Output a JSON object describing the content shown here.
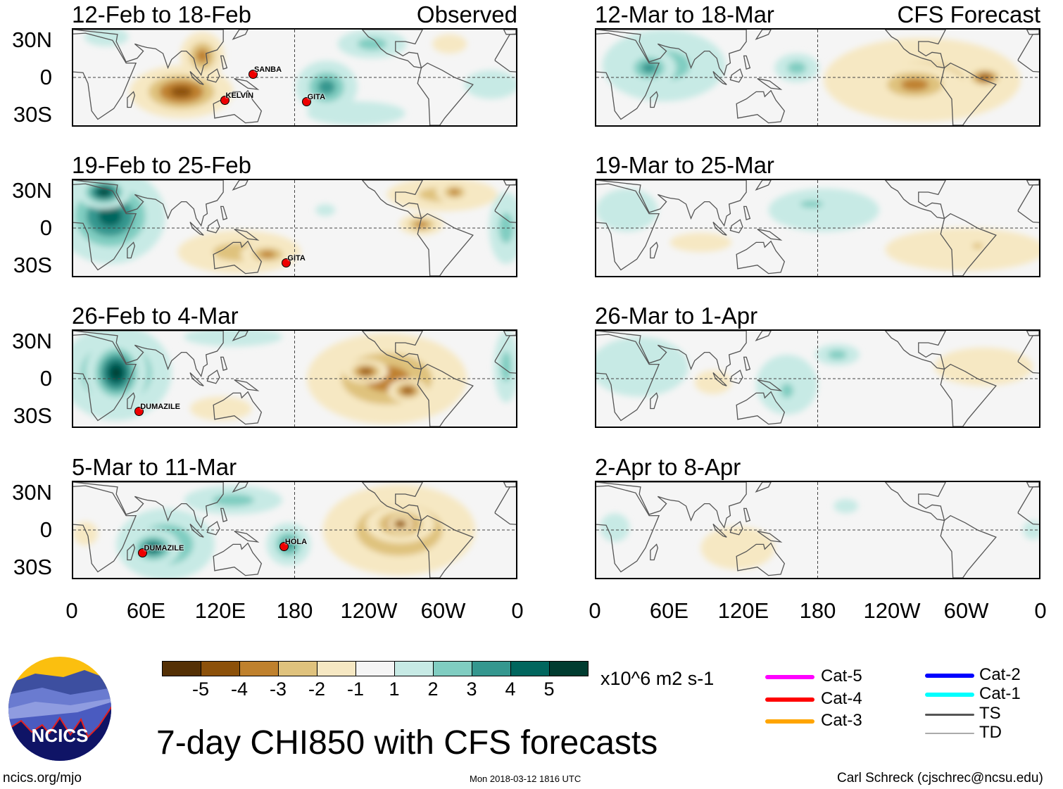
{
  "figure": {
    "title": "7-day CHI850 with CFS forecasts",
    "units": "x10^6 m2 s-1",
    "url": "ncics.org/mjo",
    "timestamp": "Mon 2018-03-12 1816 UTC",
    "credit": "Carl Schreck (cjschrec@ncsu.edu)",
    "logo_text": "NCICS"
  },
  "chart_data": {
    "type": "heatmap",
    "title": "7-day CHI850 with CFS forecasts",
    "colorbar": {
      "colors": [
        "#543005",
        "#8c510a",
        "#bf812d",
        "#dfc27d",
        "#f6e8c3",
        "#f5f5f5",
        "#c7eae5",
        "#80cdc1",
        "#35978f",
        "#01665e",
        "#003c30"
      ],
      "tick_labels": [
        "-5",
        "-4",
        "-3",
        "-2",
        "-1",
        "1",
        "2",
        "3",
        "4",
        "5"
      ],
      "units": "x10^6 m2 s-1"
    },
    "y_ticks": [
      "30N",
      "0",
      "30S"
    ],
    "x_ticks": [
      "0",
      "60E",
      "120E",
      "180",
      "120W",
      "60W",
      "0"
    ],
    "lon_range": [
      0,
      360
    ],
    "lat_range": [
      -40,
      40
    ],
    "panels": [
      {
        "title": "12-Feb to 18-Feb",
        "label": "Observed",
        "features": [
          {
            "lon": 88,
            "lat": -12,
            "rx": 42,
            "ry": 22,
            "level": -4
          },
          {
            "lon": 105,
            "lat": 18,
            "rx": 18,
            "ry": 20,
            "level": -3
          },
          {
            "lon": 206,
            "lat": -8,
            "rx": 25,
            "ry": 22,
            "level": 3
          },
          {
            "lon": 243,
            "lat": 28,
            "rx": 28,
            "ry": 12,
            "level": 2
          },
          {
            "lon": 340,
            "lat": -6,
            "rx": 22,
            "ry": 12,
            "level": 1
          },
          {
            "lon": 306,
            "lat": 28,
            "rx": 14,
            "ry": 8,
            "level": -1
          },
          {
            "lon": 27,
            "lat": 34,
            "rx": 18,
            "ry": 8,
            "level": 1
          },
          {
            "lon": 230,
            "lat": -30,
            "rx": 40,
            "ry": 10,
            "level": 1
          }
        ],
        "storms": [
          {
            "name": "SANBA",
            "lon": 145,
            "lat": 4
          },
          {
            "name": "KELVIN",
            "lon": 122,
            "lat": -17
          },
          {
            "name": "GITA",
            "lon": 188,
            "lat": -18
          }
        ]
      },
      {
        "title": "19-Feb to 25-Feb",
        "label": "",
        "features": [
          {
            "lon": 30,
            "lat": 10,
            "rx": 45,
            "ry": 40,
            "level": 4
          },
          {
            "lon": 25,
            "lat": 30,
            "rx": 22,
            "ry": 14,
            "level": 5
          },
          {
            "lon": 135,
            "lat": -20,
            "rx": 50,
            "ry": 18,
            "level": -2
          },
          {
            "lon": 158,
            "lat": -22,
            "rx": 22,
            "ry": 10,
            "level": -3
          },
          {
            "lon": 300,
            "lat": 28,
            "rx": 45,
            "ry": 14,
            "level": -2
          },
          {
            "lon": 310,
            "lat": 30,
            "rx": 15,
            "ry": 9,
            "level": -3
          },
          {
            "lon": 283,
            "lat": 3,
            "rx": 18,
            "ry": 9,
            "level": -3
          },
          {
            "lon": 352,
            "lat": 0,
            "rx": 14,
            "ry": 30,
            "level": 2
          },
          {
            "lon": 205,
            "lat": 15,
            "rx": 8,
            "ry": 5,
            "level": 1
          }
        ],
        "storms": [
          {
            "name": "GITA",
            "lon": 172,
            "lat": -27
          }
        ]
      },
      {
        "title": "26-Feb to 4-Mar",
        "label": "",
        "features": [
          {
            "lon": 35,
            "lat": 5,
            "rx": 45,
            "ry": 40,
            "level": 4
          },
          {
            "lon": 35,
            "lat": 5,
            "rx": 25,
            "ry": 30,
            "level": 5
          },
          {
            "lon": 255,
            "lat": 0,
            "rx": 65,
            "ry": 38,
            "level": -3
          },
          {
            "lon": 238,
            "lat": 6,
            "rx": 18,
            "ry": 10,
            "level": -4
          },
          {
            "lon": 272,
            "lat": -10,
            "rx": 16,
            "ry": 10,
            "level": -4
          },
          {
            "lon": 130,
            "lat": 35,
            "rx": 40,
            "ry": 8,
            "level": 1
          },
          {
            "lon": 352,
            "lat": 10,
            "rx": 10,
            "ry": 30,
            "level": 2
          },
          {
            "lon": 120,
            "lat": -25,
            "rx": 25,
            "ry": 10,
            "level": -1
          }
        ],
        "storms": [
          {
            "name": "DUMAZILE",
            "lon": 53,
            "lat": -25
          }
        ]
      },
      {
        "title": "5-Mar to 11-Mar",
        "label": "",
        "features": [
          {
            "lon": 75,
            "lat": -12,
            "rx": 40,
            "ry": 30,
            "level": 3
          },
          {
            "lon": 65,
            "lat": -15,
            "rx": 22,
            "ry": 16,
            "level": 4
          },
          {
            "lon": 175,
            "lat": -12,
            "rx": 18,
            "ry": 18,
            "level": 3
          },
          {
            "lon": 130,
            "lat": 25,
            "rx": 40,
            "ry": 12,
            "level": 2
          },
          {
            "lon": 265,
            "lat": 0,
            "rx": 62,
            "ry": 38,
            "level": -3
          },
          {
            "lon": 266,
            "lat": 5,
            "rx": 28,
            "ry": 16,
            "level": -4
          },
          {
            "lon": 266,
            "lat": 5,
            "rx": 10,
            "ry": 7,
            "level": -5
          },
          {
            "lon": 10,
            "lat": -3,
            "rx": 10,
            "ry": 10,
            "level": -1
          }
        ],
        "storms": [
          {
            "name": "DUMAZILE",
            "lon": 56,
            "lat": -17
          },
          {
            "name": "HOLA",
            "lon": 170,
            "lat": -12
          }
        ]
      },
      {
        "title": "12-Mar to 18-Mar",
        "label": "CFS Forecast",
        "features": [
          {
            "lon": 55,
            "lat": 10,
            "rx": 50,
            "ry": 30,
            "level": 2
          },
          {
            "lon": 43,
            "lat": 8,
            "rx": 22,
            "ry": 16,
            "level": 3
          },
          {
            "lon": 265,
            "lat": -2,
            "rx": 80,
            "ry": 35,
            "level": -2
          },
          {
            "lon": 259,
            "lat": -6,
            "rx": 40,
            "ry": 18,
            "level": -3
          },
          {
            "lon": 316,
            "lat": 0,
            "rx": 18,
            "ry": 10,
            "level": -4
          },
          {
            "lon": 163,
            "lat": 8,
            "rx": 18,
            "ry": 12,
            "level": 2
          }
        ],
        "storms": []
      },
      {
        "title": "19-Mar to 25-Mar",
        "label": "",
        "features": [
          {
            "lon": 185,
            "lat": 15,
            "rx": 45,
            "ry": 18,
            "level": 1
          },
          {
            "lon": 175,
            "lat": 20,
            "rx": 22,
            "ry": 7,
            "level": 2
          },
          {
            "lon": 85,
            "lat": -12,
            "rx": 25,
            "ry": 8,
            "level": -1
          },
          {
            "lon": 300,
            "lat": -18,
            "rx": 65,
            "ry": 18,
            "level": -1
          },
          {
            "lon": 310,
            "lat": -15,
            "rx": 10,
            "ry": 6,
            "level": -2
          },
          {
            "lon": 25,
            "lat": 15,
            "rx": 25,
            "ry": 18,
            "level": 1
          }
        ],
        "storms": []
      },
      {
        "title": "26-Mar to 1-Apr",
        "label": "",
        "features": [
          {
            "lon": 155,
            "lat": -5,
            "rx": 25,
            "ry": 25,
            "level": 1
          },
          {
            "lon": 155,
            "lat": -10,
            "rx": 12,
            "ry": 14,
            "level": 2
          },
          {
            "lon": 196,
            "lat": 20,
            "rx": 18,
            "ry": 9,
            "level": 2
          },
          {
            "lon": 35,
            "lat": 10,
            "rx": 40,
            "ry": 25,
            "level": 1
          },
          {
            "lon": 95,
            "lat": -3,
            "rx": 15,
            "ry": 10,
            "level": -1
          },
          {
            "lon": 315,
            "lat": 10,
            "rx": 40,
            "ry": 16,
            "level": -1
          }
        ],
        "storms": []
      },
      {
        "title": "2-Apr to 8-Apr",
        "label": "",
        "features": [
          {
            "lon": 115,
            "lat": -15,
            "rx": 30,
            "ry": 18,
            "level": -1
          },
          {
            "lon": 203,
            "lat": 20,
            "rx": 10,
            "ry": 6,
            "level": 1
          },
          {
            "lon": 15,
            "lat": 2,
            "rx": 12,
            "ry": 12,
            "level": 1
          },
          {
            "lon": 355,
            "lat": 0,
            "rx": 8,
            "ry": 8,
            "level": 1
          }
        ],
        "storms": []
      }
    ]
  },
  "legend": {
    "tracks": [
      {
        "label": "Cat-5",
        "color": "#ff00ff"
      },
      {
        "label": "Cat-4",
        "color": "#ff0000"
      },
      {
        "label": "Cat-3",
        "color": "#ffa500"
      },
      {
        "label": "Cat-2",
        "color": "#0000ff"
      },
      {
        "label": "Cat-1",
        "color": "#00ffff"
      },
      {
        "label": "TS",
        "color": "#555555"
      },
      {
        "label": "TD",
        "color": "#aaaaaa"
      }
    ]
  }
}
